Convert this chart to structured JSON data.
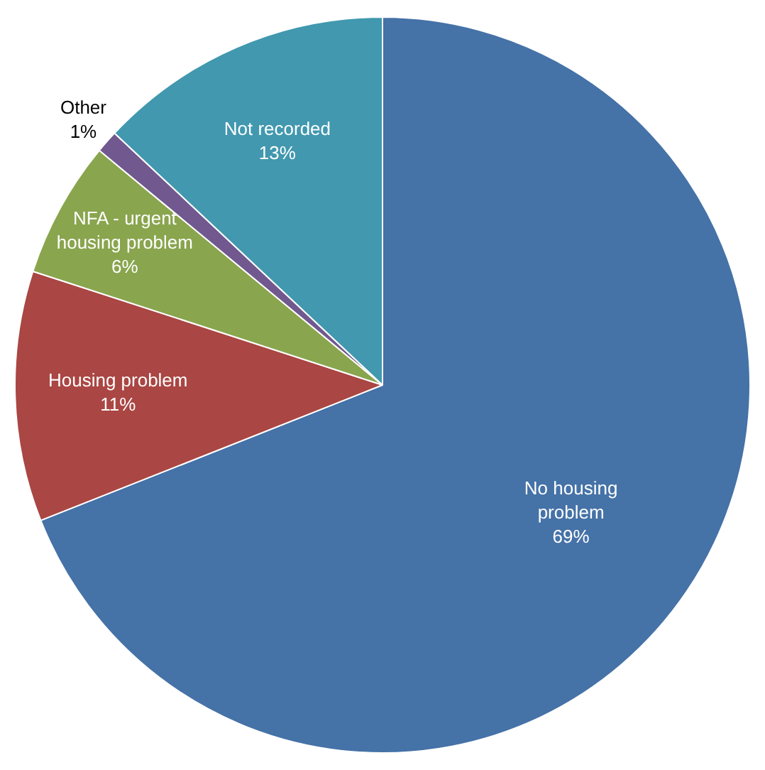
{
  "chart_data": {
    "type": "pie",
    "categories": [
      "No housing problem",
      "Housing problem",
      "NFA - urgent housing problem",
      "Other",
      "Not recorded"
    ],
    "values": [
      69,
      11,
      6,
      1,
      13
    ],
    "value_labels": [
      "69%",
      "11%",
      "6%",
      "1%",
      "13%"
    ],
    "colors": [
      "#4572a7",
      "#aa4643",
      "#89a54e",
      "#71588f",
      "#4198af"
    ],
    "legend": false
  }
}
